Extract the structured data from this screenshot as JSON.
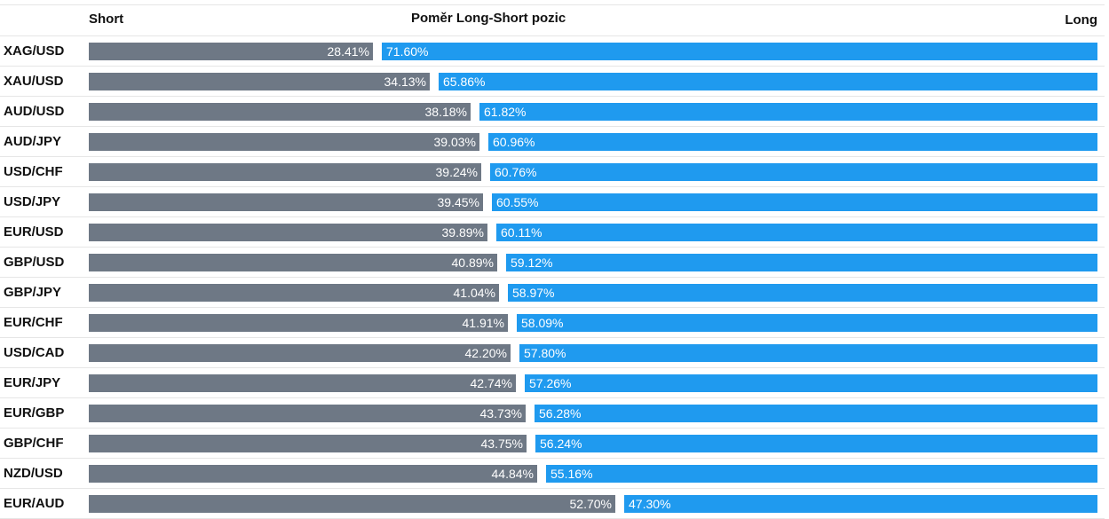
{
  "header": {
    "short_label": "Short",
    "title": "Poměr Long-Short pozic",
    "long_label": "Long"
  },
  "colors": {
    "short_bar": "#6e7885",
    "long_bar": "#1f9aef"
  },
  "chart_data": {
    "type": "bar",
    "title": "Poměr Long-Short pozic",
    "series": [
      {
        "name": "Short",
        "values": [
          28.41,
          34.13,
          38.18,
          39.03,
          39.24,
          39.45,
          39.89,
          40.89,
          41.04,
          41.91,
          42.2,
          42.74,
          43.73,
          43.75,
          44.84,
          52.7
        ]
      },
      {
        "name": "Long",
        "values": [
          71.6,
          65.86,
          61.82,
          60.96,
          60.76,
          60.55,
          60.11,
          59.12,
          58.97,
          58.09,
          57.8,
          57.26,
          56.28,
          56.24,
          55.16,
          47.3
        ]
      }
    ],
    "categories": [
      "XAG/USD",
      "XAU/USD",
      "AUD/USD",
      "AUD/JPY",
      "USD/CHF",
      "USD/JPY",
      "EUR/USD",
      "GBP/USD",
      "GBP/JPY",
      "EUR/CHF",
      "USD/CAD",
      "EUR/JPY",
      "EUR/GBP",
      "GBP/CHF",
      "NZD/USD",
      "EUR/AUD"
    ],
    "rows": [
      {
        "pair": "XAG/USD",
        "short": 28.41,
        "long": 71.6,
        "short_label": "28.41%",
        "long_label": "71.60%"
      },
      {
        "pair": "XAU/USD",
        "short": 34.13,
        "long": 65.86,
        "short_label": "34.13%",
        "long_label": "65.86%"
      },
      {
        "pair": "AUD/USD",
        "short": 38.18,
        "long": 61.82,
        "short_label": "38.18%",
        "long_label": "61.82%"
      },
      {
        "pair": "AUD/JPY",
        "short": 39.03,
        "long": 60.96,
        "short_label": "39.03%",
        "long_label": "60.96%"
      },
      {
        "pair": "USD/CHF",
        "short": 39.24,
        "long": 60.76,
        "short_label": "39.24%",
        "long_label": "60.76%"
      },
      {
        "pair": "USD/JPY",
        "short": 39.45,
        "long": 60.55,
        "short_label": "39.45%",
        "long_label": "60.55%"
      },
      {
        "pair": "EUR/USD",
        "short": 39.89,
        "long": 60.11,
        "short_label": "39.89%",
        "long_label": "60.11%"
      },
      {
        "pair": "GBP/USD",
        "short": 40.89,
        "long": 59.12,
        "short_label": "40.89%",
        "long_label": "59.12%"
      },
      {
        "pair": "GBP/JPY",
        "short": 41.04,
        "long": 58.97,
        "short_label": "41.04%",
        "long_label": "58.97%"
      },
      {
        "pair": "EUR/CHF",
        "short": 41.91,
        "long": 58.09,
        "short_label": "41.91%",
        "long_label": "58.09%"
      },
      {
        "pair": "USD/CAD",
        "short": 42.2,
        "long": 57.8,
        "short_label": "42.20%",
        "long_label": "57.80%"
      },
      {
        "pair": "EUR/JPY",
        "short": 42.74,
        "long": 57.26,
        "short_label": "42.74%",
        "long_label": "57.26%"
      },
      {
        "pair": "EUR/GBP",
        "short": 43.73,
        "long": 56.28,
        "short_label": "43.73%",
        "long_label": "56.28%"
      },
      {
        "pair": "GBP/CHF",
        "short": 43.75,
        "long": 56.24,
        "short_label": "43.75%",
        "long_label": "56.24%"
      },
      {
        "pair": "NZD/USD",
        "short": 44.84,
        "long": 55.16,
        "short_label": "44.84%",
        "long_label": "55.16%"
      },
      {
        "pair": "EUR/AUD",
        "short": 52.7,
        "long": 47.3,
        "short_label": "52.70%",
        "long_label": "47.30%"
      }
    ]
  }
}
